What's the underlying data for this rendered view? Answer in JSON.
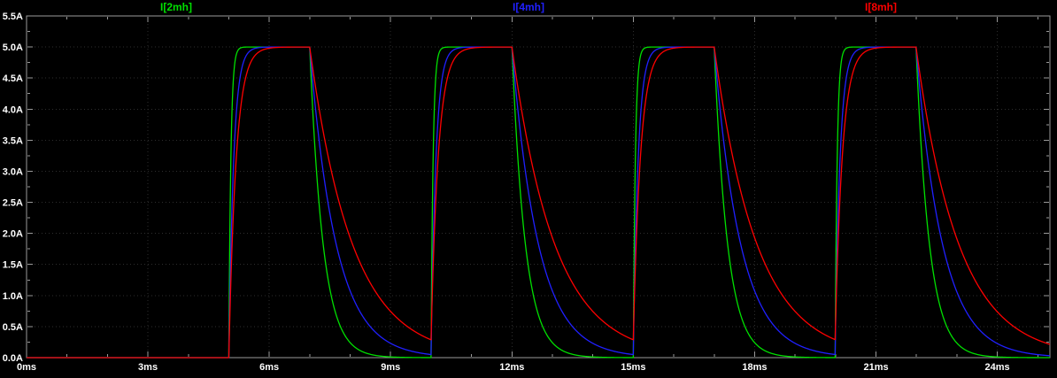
{
  "window": {
    "background": "#000000",
    "pane_border_color": "#9a9a9a",
    "grid_color": "#2e2e2e",
    "tick_text_color": "#ffffff"
  },
  "chart_data": {
    "type": "line",
    "title": "",
    "x_unit": "ms",
    "y_unit": "A",
    "xlim": [
      0,
      25.3
    ],
    "ylim": [
      0,
      5.5
    ],
    "grid": true,
    "legend_position": "top",
    "x_ticks": [
      {
        "value": 0,
        "label": "0ms"
      },
      {
        "value": 3,
        "label": "3ms"
      },
      {
        "value": 6,
        "label": "6ms"
      },
      {
        "value": 9,
        "label": "9ms"
      },
      {
        "value": 12,
        "label": "12ms"
      },
      {
        "value": 15,
        "label": "15ms"
      },
      {
        "value": 18,
        "label": "18ms"
      },
      {
        "value": 21,
        "label": "21ms"
      },
      {
        "value": 24,
        "label": "24ms"
      }
    ],
    "y_ticks": [
      {
        "value": 0.0,
        "label": "0.0A"
      },
      {
        "value": 0.5,
        "label": "0.5A"
      },
      {
        "value": 1.0,
        "label": "1.0A"
      },
      {
        "value": 1.5,
        "label": "1.5A"
      },
      {
        "value": 2.0,
        "label": "2.0A"
      },
      {
        "value": 2.5,
        "label": "2.5A"
      },
      {
        "value": 3.0,
        "label": "3.0A"
      },
      {
        "value": 3.5,
        "label": "3.5A"
      },
      {
        "value": 4.0,
        "label": "4.0A"
      },
      {
        "value": 4.5,
        "label": "4.5A"
      },
      {
        "value": 5.0,
        "label": "5.0A"
      },
      {
        "value": 5.5,
        "label": "5.5A"
      }
    ],
    "signal": {
      "description": "periodic inductor current pulses, exponential charge and discharge",
      "amplitude_a": 5.0,
      "rise_starts_ms": [
        5,
        10,
        15,
        20
      ],
      "on_time_ms": 2.0,
      "period_ms": 5.0,
      "baseline_a": 0.0
    },
    "series": [
      {
        "name": "I[2mh]",
        "color": "#00e000",
        "tau_rise_ms": 0.05,
        "tau_fall_ms": 0.33,
        "initial_a": 0,
        "plateau_a": 5.0,
        "value_at_next_rise_a": 0.001
      },
      {
        "name": "I[4mh]",
        "color": "#2020ff",
        "tau_rise_ms": 0.12,
        "tau_fall_ms": 0.65,
        "initial_a": 0,
        "plateau_a": 5.0,
        "value_at_next_rise_a": 0.05
      },
      {
        "name": "I[8mh]",
        "color": "#ff0000",
        "tau_rise_ms": 0.18,
        "tau_fall_ms": 1.05,
        "initial_a": 0,
        "plateau_a": 5.0,
        "value_at_next_rise_a": 0.28
      }
    ]
  }
}
